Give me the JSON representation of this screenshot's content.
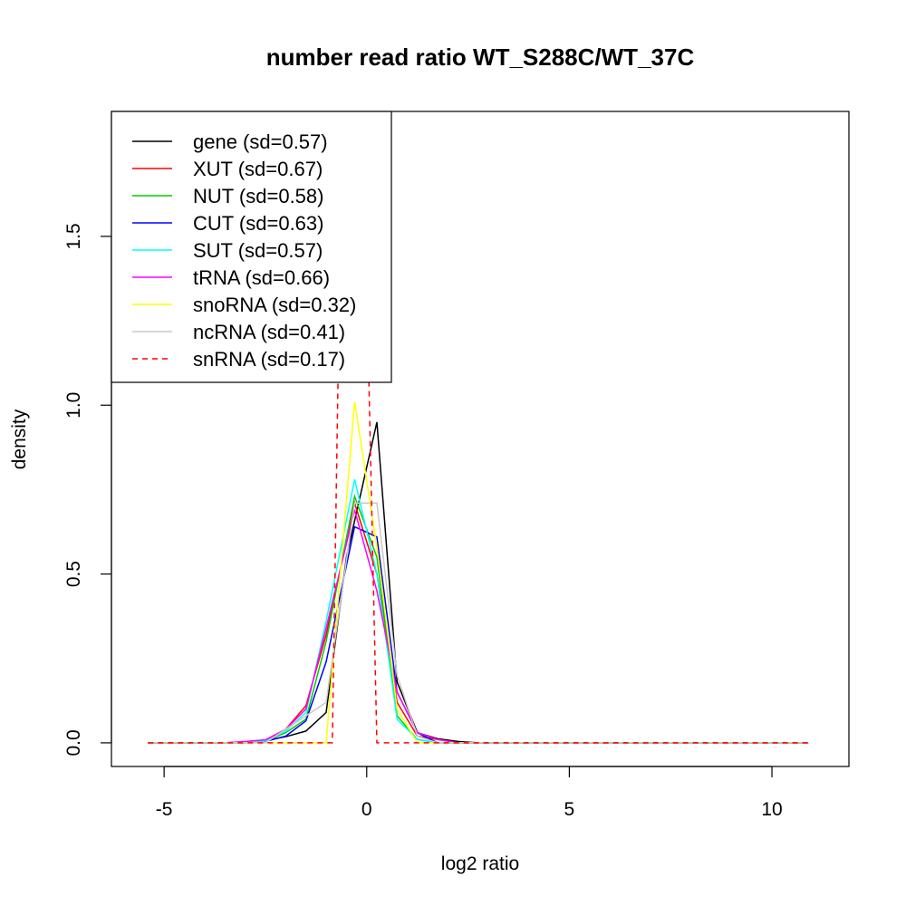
{
  "chart_data": {
    "type": "line",
    "title": "number read ratio WT_S288C/WT_37C",
    "xlabel": "log2 ratio",
    "ylabel": "density",
    "xlim": [
      -6.3,
      11.9
    ],
    "ylim": [
      -0.07,
      1.87
    ],
    "xticks": [
      -5,
      0,
      5,
      10
    ],
    "yticks": [
      0.0,
      0.5,
      1.0,
      1.5
    ],
    "xtick_labels": [
      "-5",
      "0",
      "5",
      "10"
    ],
    "ytick_labels": [
      "0.0",
      "0.5",
      "1.0",
      "1.5"
    ],
    "legend_position": "top-left",
    "series": [
      {
        "name": "gene (sd=0.57)",
        "color": "#000000",
        "dash": "solid",
        "x": [
          -5.4,
          -3.5,
          -3.0,
          -2.5,
          -2.0,
          -1.5,
          -1.0,
          -0.5,
          0.25,
          0.75,
          1.25,
          1.75,
          2.25,
          2.75,
          10.9
        ],
        "y": [
          0,
          0,
          0.003,
          0.007,
          0.018,
          0.035,
          0.09,
          0.55,
          0.95,
          0.18,
          0.03,
          0.012,
          0.004,
          0,
          0
        ]
      },
      {
        "name": "XUT (sd=0.67)",
        "color": "#ff0000",
        "dash": "solid",
        "x": [
          -5.4,
          -3.5,
          -3.0,
          -2.5,
          -2.0,
          -1.5,
          -1.0,
          -0.3,
          0.25,
          0.75,
          1.25,
          1.75,
          2.25,
          10.9
        ],
        "y": [
          0,
          0,
          0.003,
          0.008,
          0.04,
          0.11,
          0.32,
          0.71,
          0.5,
          0.12,
          0.02,
          0.01,
          0,
          0
        ]
      },
      {
        "name": "NUT (sd=0.58)",
        "color": "#00cd00",
        "dash": "solid",
        "x": [
          -5.4,
          -3.0,
          -2.5,
          -2.0,
          -1.5,
          -1.0,
          -0.3,
          0.25,
          0.75,
          1.25,
          1.75,
          10.9
        ],
        "y": [
          0,
          0,
          0.005,
          0.03,
          0.07,
          0.3,
          0.73,
          0.55,
          0.08,
          0.01,
          0,
          0
        ]
      },
      {
        "name": "CUT (sd=0.63)",
        "color": "#0000ff",
        "dash": "solid",
        "x": [
          -5.4,
          -3.0,
          -2.5,
          -2.0,
          -1.5,
          -1.0,
          -0.3,
          0.25,
          0.75,
          1.25,
          1.75,
          10.9
        ],
        "y": [
          0,
          0,
          0.004,
          0.02,
          0.065,
          0.24,
          0.64,
          0.61,
          0.15,
          0.03,
          0,
          0
        ]
      },
      {
        "name": "SUT (sd=0.57)",
        "color": "#00ffff",
        "dash": "solid",
        "x": [
          -5.4,
          -3.0,
          -2.5,
          -2.0,
          -1.5,
          -1.0,
          -0.3,
          0.25,
          0.75,
          1.25,
          1.75,
          10.9
        ],
        "y": [
          0,
          0,
          0.005,
          0.035,
          0.09,
          0.36,
          0.78,
          0.5,
          0.07,
          0.01,
          0,
          0
        ]
      },
      {
        "name": "tRNA (sd=0.66)",
        "color": "#ff00ff",
        "dash": "solid",
        "x": [
          -5.4,
          -3.5,
          -3.0,
          -2.5,
          -2.0,
          -1.5,
          -1.0,
          -0.3,
          0.25,
          0.75,
          1.25,
          1.75,
          2.25,
          10.9
        ],
        "y": [
          0,
          0,
          0.004,
          0.009,
          0.04,
          0.1,
          0.34,
          0.69,
          0.45,
          0.15,
          0.03,
          0.01,
          0,
          0
        ]
      },
      {
        "name": "snoRNA (sd=0.32)",
        "color": "#ffff00",
        "dash": "solid",
        "x": [
          -5.4,
          -1.0,
          -0.3,
          0.25,
          0.75,
          1.25,
          10.9
        ],
        "y": [
          0,
          0,
          1.01,
          0.58,
          0.1,
          0,
          0
        ]
      },
      {
        "name": "ncRNA (sd=0.41)",
        "color": "#c8c8c8",
        "dash": "solid",
        "x": [
          -5.4,
          -2.5,
          -2.0,
          -1.5,
          -1.0,
          -0.3,
          0.25,
          0.75,
          1.25,
          1.75,
          10.9
        ],
        "y": [
          0,
          0,
          0.04,
          0.08,
          0.12,
          0.71,
          0.71,
          0.2,
          0.02,
          0,
          0
        ]
      },
      {
        "name": "snRNA (sd=0.17)",
        "color": "#ff0000",
        "dash": "dashed",
        "x": [
          -5.4,
          -0.85,
          -0.6,
          -0.1,
          0.25,
          10.9
        ],
        "y": [
          0,
          0,
          1.9,
          1.9,
          0,
          0
        ]
      }
    ]
  }
}
